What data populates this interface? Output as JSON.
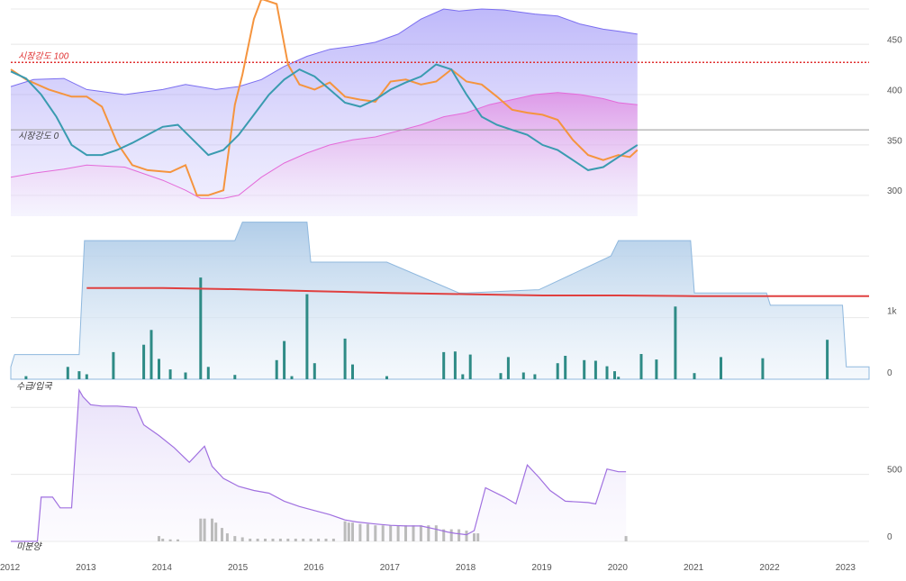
{
  "colors": {
    "band_upper": "#7b6ef0",
    "band_lower": "#e46ad9",
    "series_orange": "#f5943e",
    "series_teal": "#3a9bb0",
    "ref_100": "#e03030",
    "ref_0": "#999999",
    "bars_teal": "#2e8b86",
    "step_area": "#8fb8de",
    "red_line": "#e04040",
    "purple_line": "#a070e0",
    "gray_bars": "#bbbbbb"
  },
  "chart_data": [
    {
      "type": "line",
      "panel": "top",
      "y_ticks": [
        "300",
        "350",
        "400",
        "450"
      ],
      "ylim": [
        290,
        485
      ],
      "annotations": [
        {
          "text": "시장강도 100",
          "y": 432
        },
        {
          "text": "시장강도 0",
          "y": 365
        }
      ],
      "band_upper": {
        "x": [
          2012.0,
          2012.3,
          2012.7,
          2013.0,
          2013.5,
          2014.0,
          2014.3,
          2014.7,
          2015.0,
          2015.3,
          2015.6,
          2015.9,
          2016.2,
          2016.5,
          2016.8,
          2017.1,
          2017.4,
          2017.7,
          2017.9,
          2018.2,
          2018.5,
          2018.9,
          2019.2,
          2019.5,
          2019.8,
          2020.0,
          2020.25
        ],
        "y": [
          408,
          415,
          416,
          405,
          400,
          405,
          410,
          405,
          408,
          415,
          428,
          438,
          445,
          448,
          452,
          460,
          475,
          485,
          483,
          485,
          484,
          480,
          478,
          470,
          465,
          463,
          460
        ]
      },
      "band_lower": {
        "x": [
          2012.0,
          2012.3,
          2012.7,
          2013.0,
          2013.5,
          2014.0,
          2014.3,
          2014.5,
          2014.8,
          2015.0,
          2015.3,
          2015.6,
          2015.9,
          2016.2,
          2016.5,
          2016.8,
          2017.1,
          2017.4,
          2017.7,
          2018.0,
          2018.3,
          2018.6,
          2018.9,
          2019.2,
          2019.5,
          2019.8,
          2020.0,
          2020.25
        ],
        "y": [
          318,
          322,
          326,
          330,
          328,
          315,
          305,
          297,
          297,
          300,
          318,
          332,
          342,
          350,
          355,
          358,
          364,
          370,
          378,
          382,
          390,
          395,
          400,
          402,
          400,
          396,
          392,
          390
        ]
      },
      "series": [
        {
          "name": "orange",
          "x": [
            2012.0,
            2012.2,
            2012.5,
            2012.8,
            2013.0,
            2013.2,
            2013.4,
            2013.6,
            2013.8,
            2014.1,
            2014.3,
            2014.45,
            2014.6,
            2014.8,
            2014.95,
            2015.05,
            2015.2,
            2015.3,
            2015.5,
            2015.65,
            2015.8,
            2016.0,
            2016.2,
            2016.4,
            2016.6,
            2016.8,
            2017.0,
            2017.2,
            2017.4,
            2017.6,
            2017.8,
            2018.0,
            2018.2,
            2018.4,
            2018.6,
            2018.8,
            2019.0,
            2019.2,
            2019.4,
            2019.6,
            2019.8,
            2020.0,
            2020.15,
            2020.25
          ],
          "y": [
            425,
            415,
            405,
            398,
            398,
            388,
            352,
            330,
            325,
            323,
            330,
            300,
            300,
            305,
            390,
            420,
            475,
            495,
            490,
            430,
            410,
            405,
            412,
            398,
            395,
            393,
            413,
            415,
            410,
            413,
            425,
            413,
            410,
            398,
            385,
            382,
            380,
            375,
            355,
            340,
            335,
            340,
            338,
            345
          ]
        },
        {
          "name": "teal",
          "x": [
            2012.0,
            2012.2,
            2012.4,
            2012.6,
            2012.8,
            2013.0,
            2013.2,
            2013.4,
            2013.6,
            2013.8,
            2014.0,
            2014.2,
            2014.4,
            2014.6,
            2014.8,
            2015.0,
            2015.2,
            2015.4,
            2015.6,
            2015.8,
            2016.0,
            2016.2,
            2016.4,
            2016.6,
            2016.8,
            2017.0,
            2017.2,
            2017.4,
            2017.6,
            2017.8,
            2018.0,
            2018.2,
            2018.4,
            2018.6,
            2018.8,
            2019.0,
            2019.2,
            2019.4,
            2019.6,
            2019.8,
            2020.0,
            2020.15,
            2020.25
          ],
          "y": [
            423,
            416,
            400,
            378,
            350,
            340,
            340,
            345,
            352,
            360,
            368,
            370,
            355,
            340,
            345,
            360,
            380,
            400,
            415,
            425,
            418,
            405,
            392,
            388,
            395,
            405,
            412,
            418,
            430,
            425,
            400,
            378,
            370,
            365,
            360,
            350,
            345,
            335,
            325,
            328,
            338,
            345,
            350
          ]
        }
      ]
    },
    {
      "type": "bar",
      "panel": "middle",
      "y_ticks": [
        "0",
        "1k"
      ],
      "ylim": [
        0,
        2500
      ],
      "step_area": {
        "x": [
          2012.0,
          2012.05,
          2012.9,
          2012.97,
          2013.9,
          2014.95,
          2015.05,
          2015.9,
          2015.95,
          2016.9,
          2016.95,
          2017.9,
          2018.0,
          2018.9,
          2018.95,
          2019.9,
          2020.0,
          2020.95,
          2021.0,
          2021.95,
          2022.0,
          2022.95,
          2023.0,
          2023.3
        ],
        "y": [
          200,
          400,
          400,
          2250,
          2250,
          2250,
          2550,
          2550,
          1900,
          1900,
          1900,
          1400,
          1400,
          1450,
          1450,
          2000,
          2250,
          2250,
          1400,
          1400,
          1200,
          1200,
          200,
          200
        ]
      },
      "red_line": {
        "x": [
          2013.0,
          2014.0,
          2015.0,
          2016.0,
          2017.0,
          2018.0,
          2019.0,
          2020.0,
          2021.0,
          2022.0,
          2023.3
        ],
        "y": [
          1480,
          1480,
          1460,
          1430,
          1400,
          1380,
          1360,
          1360,
          1350,
          1350,
          1350
        ]
      },
      "bars": {
        "x": [
          2012.2,
          2012.75,
          2012.9,
          2013.0,
          2013.35,
          2013.75,
          2013.85,
          2013.95,
          2014.1,
          2014.3,
          2014.5,
          2014.6,
          2014.95,
          2015.5,
          2015.6,
          2015.7,
          2015.9,
          2016.0,
          2016.4,
          2016.5,
          2016.95,
          2017.7,
          2017.85,
          2017.95,
          2018.05,
          2018.45,
          2018.55,
          2018.75,
          2018.9,
          2019.2,
          2019.3,
          2019.55,
          2019.7,
          2019.85,
          2019.95,
          2020.0,
          2020.3,
          2020.5,
          2020.75,
          2021.0,
          2021.35,
          2021.9,
          2022.75
        ],
        "y": [
          50,
          200,
          130,
          80,
          440,
          560,
          800,
          330,
          160,
          110,
          1650,
          200,
          70,
          310,
          620,
          50,
          1380,
          260,
          660,
          240,
          50,
          440,
          450,
          80,
          400,
          100,
          360,
          110,
          80,
          260,
          380,
          310,
          300,
          210,
          130,
          40,
          410,
          320,
          1180,
          100,
          360,
          340,
          640
        ]
      }
    },
    {
      "type": "line",
      "panel": "bottom",
      "y_ticks": [
        "0",
        "500"
      ],
      "ylim": [
        0,
        1150
      ],
      "line": {
        "x": [
          2012.0,
          2012.35,
          2012.4,
          2012.55,
          2012.65,
          2012.8,
          2012.9,
          2012.95,
          2013.05,
          2013.2,
          2013.4,
          2013.65,
          2013.75,
          2013.95,
          2014.15,
          2014.35,
          2014.55,
          2014.65,
          2014.8,
          2015.0,
          2015.2,
          2015.4,
          2015.6,
          2015.8,
          2016.0,
          2016.2,
          2016.4,
          2016.55,
          2016.8,
          2017.0,
          2017.2,
          2017.4,
          2017.6,
          2017.75,
          2017.85,
          2018.0,
          2018.1,
          2018.25,
          2018.5,
          2018.65,
          2018.8,
          2018.95,
          2019.1,
          2019.3,
          2019.6,
          2019.7,
          2019.85,
          2020.0,
          2020.1
        ],
        "y": [
          0,
          0,
          330,
          330,
          250,
          250,
          1130,
          1080,
          1020,
          1010,
          1010,
          1000,
          870,
          790,
          700,
          590,
          710,
          560,
          470,
          410,
          380,
          360,
          300,
          260,
          230,
          200,
          160,
          145,
          130,
          120,
          115,
          115,
          90,
          70,
          60,
          50,
          80,
          400,
          330,
          280,
          570,
          480,
          380,
          300,
          290,
          280,
          540,
          520,
          520
        ]
      },
      "gray_bars": {
        "x": [
          2013.95,
          2014.0,
          2014.1,
          2014.2,
          2014.5,
          2014.55,
          2014.65,
          2014.7,
          2014.78,
          2014.85,
          2014.95,
          2015.05,
          2015.15,
          2015.25,
          2015.35,
          2015.45,
          2015.55,
          2015.65,
          2015.75,
          2015.85,
          2015.95,
          2016.05,
          2016.15,
          2016.25,
          2016.4,
          2016.45,
          2016.5,
          2016.6,
          2016.7,
          2016.8,
          2016.9,
          2017.0,
          2017.1,
          2017.2,
          2017.3,
          2017.4,
          2017.5,
          2017.6,
          2017.7,
          2017.8,
          2017.9,
          2018.0,
          2018.1,
          2018.15,
          2020.1
        ],
        "y": [
          40,
          20,
          15,
          15,
          170,
          170,
          170,
          140,
          100,
          60,
          40,
          30,
          20,
          20,
          20,
          20,
          20,
          20,
          20,
          20,
          20,
          20,
          20,
          20,
          150,
          140,
          140,
          130,
          130,
          120,
          120,
          120,
          120,
          120,
          120,
          120,
          120,
          120,
          90,
          90,
          90,
          80,
          60,
          60,
          40
        ]
      }
    }
  ],
  "panel_labels": {
    "middle": "수급/입국",
    "bottom": "미분양"
  },
  "x_ticks": [
    "2012",
    "2013",
    "2014",
    "2015",
    "2016",
    "2017",
    "2018",
    "2019",
    "2020",
    "2021",
    "2022",
    "2023"
  ]
}
